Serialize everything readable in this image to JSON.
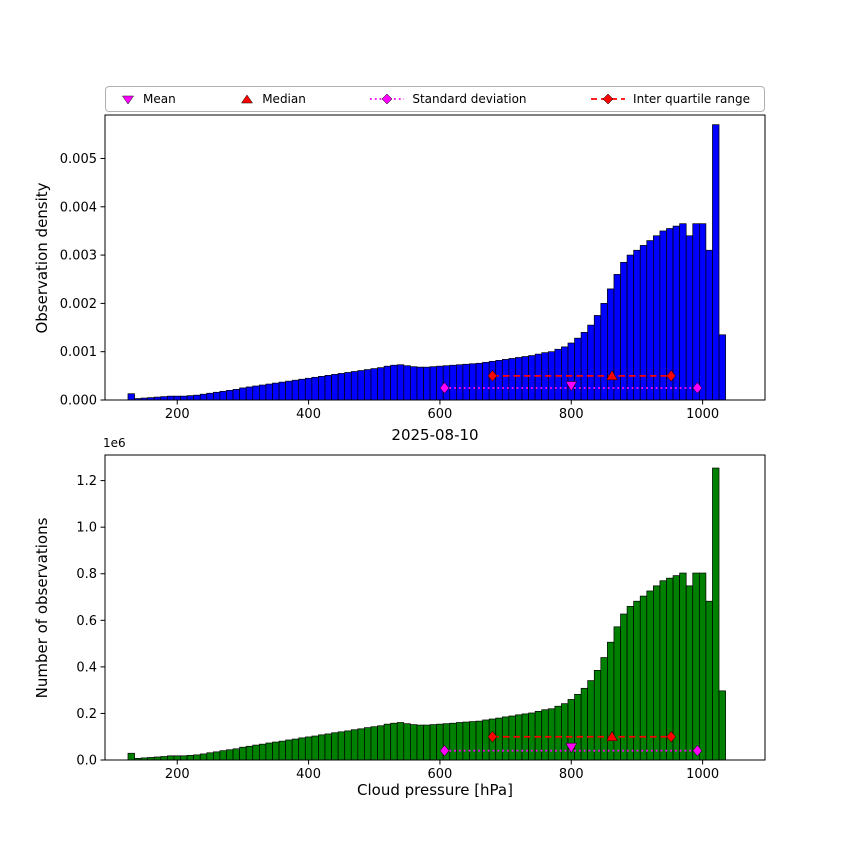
{
  "figure": {
    "background": "#ffffff"
  },
  "legend": {
    "items": [
      {
        "label": "Mean",
        "marker": "triangle-down",
        "color": "#ff00ff",
        "line": "none"
      },
      {
        "label": "Median",
        "marker": "triangle-up",
        "color": "#ff0000",
        "line": "none"
      },
      {
        "label": "Standard deviation",
        "marker": "diamond",
        "color": "#ff00ff",
        "line": "dotted"
      },
      {
        "label": "Inter quartile range",
        "marker": "diamond",
        "color": "#ff0000",
        "line": "dashed"
      }
    ]
  },
  "colors": {
    "mean": "#ff00ff",
    "median": "#ff0000",
    "std": "#ff00ff",
    "iqr": "#ff0000",
    "top_bar": "#0000ff",
    "bottom_bar": "#008000",
    "bar_edge": "#000000"
  },
  "chart_data": [
    {
      "type": "bar",
      "title": "",
      "ylabel": "Observation density",
      "xlabel": "",
      "bar_color": "#0000ff",
      "bar_edge_color": "#000000",
      "bins_start_hPa": 125,
      "bin_width_hPa": 10,
      "values": [
        0.00013,
        3e-05,
        4e-05,
        5e-05,
        6e-05,
        7e-05,
        8e-05,
        8e-05,
        8e-05,
        9e-05,
        0.0001,
        0.00012,
        0.00014,
        0.00016,
        0.00018,
        0.0002,
        0.00022,
        0.00025,
        0.00027,
        0.00029,
        0.00031,
        0.00033,
        0.00035,
        0.00037,
        0.00039,
        0.00041,
        0.00043,
        0.00045,
        0.00047,
        0.00049,
        0.00051,
        0.00053,
        0.00055,
        0.00057,
        0.00059,
        0.00061,
        0.00063,
        0.00065,
        0.00067,
        0.0007,
        0.00072,
        0.00073,
        0.00071,
        0.00069,
        0.00068,
        0.00068,
        0.00069,
        0.0007,
        0.00071,
        0.00072,
        0.00073,
        0.00074,
        0.00075,
        0.00076,
        0.00078,
        0.0008,
        0.00082,
        0.00084,
        0.00086,
        0.00088,
        0.0009,
        0.00092,
        0.00095,
        0.00098,
        0.001,
        0.00105,
        0.0011,
        0.00118,
        0.00128,
        0.0014,
        0.00155,
        0.00175,
        0.002,
        0.0023,
        0.0026,
        0.00285,
        0.003,
        0.0031,
        0.0032,
        0.0033,
        0.0034,
        0.0035,
        0.00355,
        0.0036,
        0.00365,
        0.0034,
        0.00365,
        0.00365,
        0.0031,
        0.0057,
        0.00135
      ],
      "xlim": [
        90,
        1095
      ],
      "ylim": [
        0,
        0.0059
      ],
      "xticks": [
        200,
        400,
        600,
        800,
        1000
      ],
      "xtick_labels": [
        "200",
        "400",
        "600",
        "800",
        "1000"
      ],
      "yticks": [
        0,
        0.001,
        0.002,
        0.003,
        0.004,
        0.005
      ],
      "ytick_labels": [
        "0.000",
        "0.001",
        "0.002",
        "0.003",
        "0.004",
        "0.005"
      ],
      "markers": {
        "mean": {
          "x": 800,
          "y": 0.0003
        },
        "median": {
          "x": 862,
          "y": 0.0005
        },
        "std_range": {
          "x1": 607,
          "x2": 992,
          "y": 0.00025
        },
        "iqr_range": {
          "x1": 680,
          "x2": 952,
          "y": 0.0005
        }
      }
    },
    {
      "type": "bar",
      "title": "2025-08-10",
      "ylabel": "Number of observations",
      "xlabel": "Cloud pressure [hPa]",
      "y_offset_label": "1e6",
      "y_unit": "1e6",
      "bar_color": "#008000",
      "bar_edge_color": "#000000",
      "bins_start_hPa": 125,
      "bin_width_hPa": 10,
      "values": [
        0.029,
        0.007,
        0.009,
        0.011,
        0.013,
        0.015,
        0.018,
        0.018,
        0.018,
        0.02,
        0.022,
        0.026,
        0.031,
        0.035,
        0.04,
        0.044,
        0.048,
        0.055,
        0.059,
        0.064,
        0.068,
        0.073,
        0.077,
        0.081,
        0.086,
        0.09,
        0.095,
        0.099,
        0.103,
        0.108,
        0.112,
        0.117,
        0.121,
        0.125,
        0.13,
        0.134,
        0.139,
        0.143,
        0.147,
        0.154,
        0.158,
        0.161,
        0.156,
        0.152,
        0.15,
        0.15,
        0.152,
        0.154,
        0.156,
        0.158,
        0.161,
        0.163,
        0.165,
        0.167,
        0.172,
        0.176,
        0.18,
        0.185,
        0.189,
        0.194,
        0.198,
        0.202,
        0.209,
        0.216,
        0.22,
        0.231,
        0.242,
        0.26,
        0.282,
        0.308,
        0.341,
        0.385,
        0.44,
        0.506,
        0.572,
        0.627,
        0.66,
        0.682,
        0.704,
        0.726,
        0.748,
        0.77,
        0.781,
        0.792,
        0.803,
        0.748,
        0.803,
        0.803,
        0.682,
        1.254,
        0.297
      ],
      "xlim": [
        90,
        1095
      ],
      "ylim": [
        0,
        1.31
      ],
      "xticks": [
        200,
        400,
        600,
        800,
        1000
      ],
      "xtick_labels": [
        "200",
        "400",
        "600",
        "800",
        "1000"
      ],
      "yticks": [
        0,
        0.2,
        0.4,
        0.6,
        0.8,
        1.0,
        1.2
      ],
      "ytick_labels": [
        "0.0",
        "0.2",
        "0.4",
        "0.6",
        "0.8",
        "1.0",
        "1.2"
      ],
      "markers": {
        "mean": {
          "x": 800,
          "y": 0.055
        },
        "median": {
          "x": 862,
          "y": 0.1
        },
        "std_range": {
          "x1": 607,
          "x2": 992,
          "y": 0.04
        },
        "iqr_range": {
          "x1": 680,
          "x2": 952,
          "y": 0.1
        }
      }
    }
  ]
}
